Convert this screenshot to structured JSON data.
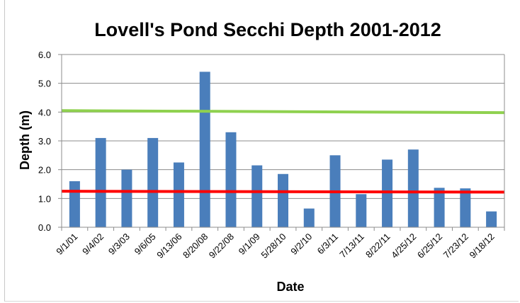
{
  "chart_data": {
    "type": "bar",
    "title": "Lovell's Pond Secchi Depth 2001-2012",
    "xlabel": "Date",
    "ylabel": "Depth (m)",
    "ylim": [
      0,
      6
    ],
    "yticks": [
      "0.0",
      "1.0",
      "2.0",
      "3.0",
      "4.0",
      "5.0",
      "6.0"
    ],
    "grid": true,
    "legend": "none",
    "categories": [
      "9/1/01",
      "9/4/02",
      "9/3/03",
      "9/6/05",
      "9/13/06",
      "8/20/08",
      "9/22/08",
      "9/1/09",
      "5/28/10",
      "9/2/10",
      "6/3/11",
      "7/13/11",
      "8/22/11",
      "4/25/12",
      "6/25/12",
      "7/23/12",
      "9/18/12"
    ],
    "values": [
      1.6,
      3.1,
      2.0,
      3.1,
      2.25,
      5.4,
      3.3,
      2.15,
      1.85,
      0.65,
      2.5,
      1.15,
      2.35,
      2.7,
      1.37,
      1.35,
      0.55
    ],
    "bar_color": "#4a7ebb",
    "reference_lines": [
      {
        "start": 4.05,
        "end": 3.98,
        "color": "#8fd14f"
      },
      {
        "start": 1.25,
        "end": 1.22,
        "color": "#ff0000"
      }
    ]
  }
}
